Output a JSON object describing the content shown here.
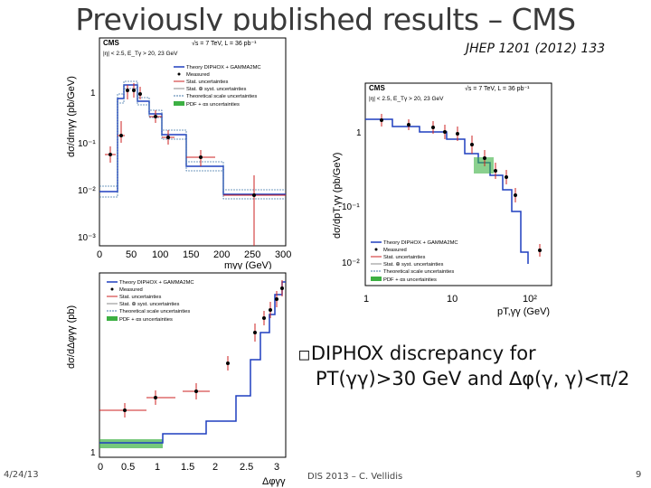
{
  "slide": {
    "title": "Previously published results – CMS",
    "reference": "JHEP 1201 (2012) 133",
    "bullet_line1": "DIPHOX discrepancy for",
    "bullet_line2": "PT(γγ)>30 GeV and ∆φ(γ, γ)<π/2",
    "bullet_marker": "□",
    "footer_date": "4/24/13",
    "footer_center": "DIS 2013 – C. Vellidis",
    "footer_page": "9"
  },
  "plots": {
    "common": {
      "cms": "CMS",
      "energy": "√s = 7 TeV, L = 36 pb⁻¹",
      "cuts": "|η| < 2.5, E_Tγ > 20, 23 GeV",
      "legend": [
        "Theory DIPHOX + GAMMA2MC",
        "Measured",
        "Stat. uncertainties",
        "Stat. ⊕ syst. uncertainties",
        "Theoretical scale uncertainties",
        "PDF + αs uncertainties"
      ],
      "colors": {
        "theory": "#1f3fbf",
        "measured": "#000000",
        "stat": "#cc2222",
        "syst": "#888888",
        "scale": "#4477aa",
        "pdf": "#3cb043"
      }
    },
    "mass": {
      "ylabel": "dσ/dmγγ (pb/GeV)",
      "xlabel": "mγγ (GeV)",
      "xticks": [
        "0",
        "50",
        "100",
        "150",
        "200",
        "250",
        "300"
      ],
      "yticks": [
        "1",
        "10⁻¹",
        "10⁻²",
        "10⁻³"
      ]
    },
    "pt": {
      "ylabel": "dσ/dpT,γγ (pb/GeV)",
      "xlabel": "pT,γγ (GeV)",
      "xticks": [
        "1",
        "10",
        "10²"
      ],
      "yticks": [
        "1",
        "10⁻¹",
        "10⁻²"
      ]
    },
    "dphi": {
      "ylabel": "dσ/dΔφγγ (pb)",
      "xlabel": "Δφγγ",
      "xticks": [
        "0",
        "0.5",
        "1",
        "1.5",
        "2",
        "2.5",
        "3"
      ],
      "yticks": [
        "1"
      ]
    }
  }
}
